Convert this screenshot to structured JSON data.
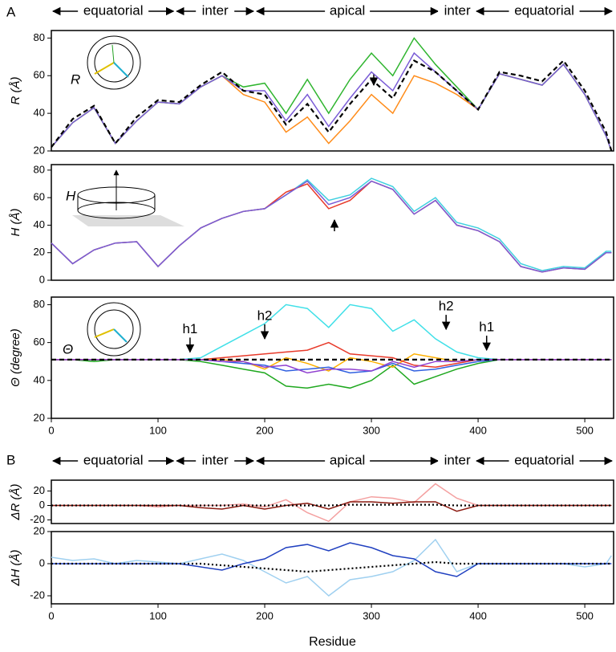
{
  "panel_labels": [
    "A",
    "B"
  ],
  "domains": [
    {
      "label": "equatorial",
      "start": 0,
      "end": 116
    },
    {
      "label": "inter",
      "start": 116,
      "end": 191
    },
    {
      "label": "apical",
      "start": 191,
      "end": 364
    },
    {
      "label": "inter",
      "start": 364,
      "end": 397
    },
    {
      "label": "equatorial",
      "start": 397,
      "end": 527
    }
  ],
  "chart_data": [
    {
      "type": "line",
      "ylabel": "R (Å)",
      "inset_label": "R",
      "xlim": [
        0,
        527
      ],
      "ylim": [
        20,
        84
      ],
      "yticks": [
        20,
        40,
        60,
        80
      ],
      "x": [
        0,
        20,
        40,
        60,
        80,
        100,
        120,
        140,
        160,
        180,
        200,
        220,
        240,
        260,
        280,
        300,
        320,
        340,
        360,
        380,
        400,
        420,
        440,
        460,
        480,
        500,
        520,
        525
      ],
      "series": [
        {
          "color": "#ff8c1a",
          "values": [
            22,
            35,
            43,
            24,
            36,
            46,
            45,
            54,
            60,
            50,
            46,
            30,
            38,
            24,
            36,
            50,
            40,
            60,
            56,
            50,
            42,
            61,
            58,
            55,
            66,
            50,
            28,
            20
          ]
        },
        {
          "color": "#2fb52f",
          "values": [
            22,
            35,
            43,
            24,
            36,
            46,
            45,
            54,
            60,
            54,
            56,
            40,
            58,
            40,
            58,
            72,
            60,
            80,
            66,
            54,
            42,
            61,
            58,
            55,
            66,
            50,
            28,
            20
          ]
        },
        {
          "color": "#7a5cd6",
          "values": [
            22,
            35,
            43,
            24,
            36,
            46,
            45,
            54,
            60,
            52,
            52,
            36,
            50,
            33,
            48,
            62,
            52,
            72,
            62,
            52,
            42,
            61,
            58,
            55,
            66,
            50,
            28,
            20
          ]
        },
        {
          "color": "#000000",
          "dash": "dashed",
          "values": [
            22,
            37,
            44,
            24,
            38,
            47,
            46,
            55,
            62,
            52,
            50,
            34,
            45,
            30,
            45,
            58,
            48,
            68,
            62,
            52,
            42,
            62,
            60,
            57,
            68,
            52,
            30,
            20
          ]
        }
      ]
    },
    {
      "type": "line",
      "ylabel": "H (Å)",
      "inset_label": "H",
      "xlim": [
        0,
        527
      ],
      "ylim": [
        0,
        84
      ],
      "yticks": [
        0,
        20,
        40,
        60,
        80
      ],
      "x": [
        0,
        20,
        40,
        60,
        80,
        100,
        120,
        140,
        160,
        180,
        200,
        220,
        240,
        260,
        280,
        300,
        320,
        340,
        360,
        380,
        400,
        420,
        440,
        460,
        480,
        500,
        520,
        525
      ],
      "series": [
        {
          "color": "#40d0e0",
          "values": [
            27,
            12,
            22,
            27,
            28,
            10,
            25,
            38,
            45,
            50,
            52,
            62,
            73,
            58,
            62,
            74,
            68,
            50,
            60,
            42,
            38,
            30,
            12,
            7,
            10,
            9,
            21,
            21
          ]
        },
        {
          "color": "#e83a2a",
          "values": [
            27,
            12,
            22,
            27,
            28,
            10,
            25,
            38,
            45,
            50,
            52,
            64,
            70,
            52,
            58,
            72,
            66,
            48,
            58,
            40,
            36,
            28,
            10,
            6,
            9,
            8,
            20,
            20
          ]
        },
        {
          "color": "#7a5cd6",
          "values": [
            27,
            12,
            22,
            27,
            28,
            10,
            25,
            38,
            45,
            50,
            52,
            62,
            72,
            55,
            60,
            72,
            66,
            48,
            58,
            40,
            36,
            28,
            10,
            6,
            9,
            8,
            20,
            20
          ]
        }
      ]
    },
    {
      "type": "line",
      "ylabel": "Θ (degree)",
      "inset_label": "Θ",
      "xlim": [
        0,
        527
      ],
      "ylim": [
        20,
        84
      ],
      "yticks": [
        20,
        40,
        60,
        80
      ],
      "xticks": [
        0,
        100,
        200,
        300,
        400,
        500
      ],
      "x": [
        0,
        20,
        40,
        60,
        80,
        100,
        120,
        140,
        160,
        180,
        200,
        220,
        240,
        260,
        280,
        300,
        320,
        340,
        360,
        380,
        400,
        420,
        440,
        460,
        480,
        500,
        520,
        525
      ],
      "annotations": [
        {
          "text": "h1",
          "x": 130,
          "y": 55
        },
        {
          "text": "h2",
          "x": 200,
          "y": 62
        },
        {
          "text": "h2",
          "x": 370,
          "y": 67
        },
        {
          "text": "h1",
          "x": 408,
          "y": 56
        }
      ],
      "series": [
        {
          "color": "#40e0e8",
          "values": [
            51,
            51,
            51,
            51,
            51,
            51,
            51,
            52,
            58,
            64,
            70,
            80,
            78,
            68,
            80,
            78,
            66,
            72,
            62,
            55,
            52,
            51,
            51,
            51,
            51,
            51,
            51,
            51
          ]
        },
        {
          "color": "#1fa81f",
          "values": [
            51,
            51,
            50,
            51,
            51,
            51,
            51,
            50,
            48,
            46,
            44,
            37,
            36,
            38,
            36,
            40,
            48,
            38,
            42,
            46,
            49,
            51,
            51,
            51,
            51,
            51,
            51,
            51
          ]
        },
        {
          "color": "#ffb000",
          "values": [
            51,
            51,
            51,
            51,
            51,
            51,
            51,
            51,
            51,
            50,
            46,
            52,
            49,
            45,
            52,
            50,
            47,
            54,
            52,
            50,
            51,
            51,
            51,
            51,
            51,
            51,
            51,
            51
          ]
        },
        {
          "color": "#3060e0",
          "values": [
            51,
            51,
            51,
            51,
            51,
            51,
            51,
            51,
            50,
            49,
            48,
            45,
            46,
            47,
            44,
            45,
            49,
            45,
            46,
            48,
            50,
            51,
            51,
            51,
            51,
            51,
            51,
            51
          ]
        },
        {
          "color": "#e83a2a",
          "values": [
            51,
            51,
            51,
            51,
            51,
            51,
            51,
            51,
            52,
            53,
            54,
            55,
            56,
            60,
            54,
            53,
            52,
            48,
            47,
            49,
            51,
            51,
            51,
            51,
            51,
            51,
            51,
            51
          ]
        },
        {
          "color": "#9040d0",
          "values": [
            51,
            51,
            51,
            51,
            51,
            51,
            51,
            51,
            50,
            50,
            47,
            48,
            44,
            46,
            46,
            45,
            50,
            47,
            50,
            50,
            51,
            51,
            51,
            51,
            51,
            51,
            51,
            51
          ]
        },
        {
          "color": "#000000",
          "dash": "dashed",
          "values": [
            51,
            51,
            51,
            51,
            51,
            51,
            51,
            51,
            51,
            51,
            51,
            51,
            51,
            51,
            51,
            51,
            51,
            51,
            51,
            51,
            51,
            51,
            51,
            51,
            51,
            51,
            51,
            51
          ]
        }
      ]
    },
    {
      "type": "line",
      "ylabel": "ΔR (Å)",
      "xlim": [
        0,
        527
      ],
      "ylim": [
        -25,
        35
      ],
      "yticks": [
        -20,
        0,
        20
      ],
      "x": [
        0,
        20,
        40,
        60,
        80,
        100,
        120,
        140,
        160,
        180,
        200,
        220,
        240,
        260,
        280,
        300,
        320,
        340,
        360,
        380,
        400,
        420,
        440,
        460,
        480,
        500,
        520,
        525
      ],
      "series": [
        {
          "color": "#f4a0a0",
          "values": [
            0,
            0,
            0,
            0,
            0,
            -2,
            0,
            0,
            0,
            2,
            -2,
            8,
            -10,
            -22,
            5,
            12,
            10,
            4,
            30,
            10,
            0,
            0,
            0,
            0,
            0,
            0,
            0,
            0
          ]
        },
        {
          "color": "#8b1a10",
          "values": [
            0,
            0,
            0,
            0,
            0,
            0,
            0,
            -3,
            -5,
            0,
            -5,
            0,
            3,
            -5,
            5,
            5,
            3,
            5,
            5,
            -8,
            0,
            0,
            0,
            0,
            0,
            0,
            0,
            0
          ]
        },
        {
          "color": "#000000",
          "dash": "dotted",
          "values": [
            0,
            0,
            0,
            0,
            0,
            0,
            0,
            0,
            0,
            0,
            0,
            0,
            0,
            0,
            1,
            1,
            1,
            1,
            1,
            0,
            0,
            0,
            0,
            0,
            0,
            0,
            0,
            0
          ]
        }
      ]
    },
    {
      "type": "line",
      "ylabel": "ΔH (Å)",
      "xlabel": "Residue",
      "xlim": [
        0,
        527
      ],
      "ylim": [
        -25,
        20
      ],
      "yticks": [
        -20,
        0,
        20
      ],
      "xticks": [
        0,
        100,
        200,
        300,
        400,
        500
      ],
      "x": [
        0,
        20,
        40,
        60,
        80,
        100,
        120,
        140,
        160,
        180,
        200,
        220,
        240,
        260,
        280,
        300,
        320,
        340,
        360,
        380,
        400,
        420,
        440,
        460,
        480,
        500,
        520,
        525
      ],
      "series": [
        {
          "color": "#9fd0f0",
          "values": [
            4,
            2,
            3,
            0,
            2,
            1,
            0,
            3,
            6,
            2,
            -5,
            -12,
            -8,
            -20,
            -10,
            -8,
            -5,
            2,
            15,
            -5,
            0,
            0,
            0,
            0,
            0,
            -2,
            0,
            5
          ]
        },
        {
          "color": "#2040c0",
          "values": [
            0,
            0,
            0,
            0,
            0,
            0,
            0,
            -2,
            -4,
            0,
            3,
            10,
            12,
            8,
            13,
            10,
            5,
            3,
            -5,
            -8,
            0,
            0,
            0,
            0,
            0,
            0,
            0,
            0
          ]
        },
        {
          "color": "#000000",
          "dash": "dotted",
          "values": [
            0,
            0,
            0,
            0,
            0,
            0,
            0,
            0,
            -1,
            -2,
            -3,
            -4,
            -5,
            -4,
            -3,
            -2,
            -1,
            0,
            1,
            0,
            0,
            0,
            0,
            0,
            0,
            0,
            0,
            0
          ]
        }
      ]
    }
  ]
}
